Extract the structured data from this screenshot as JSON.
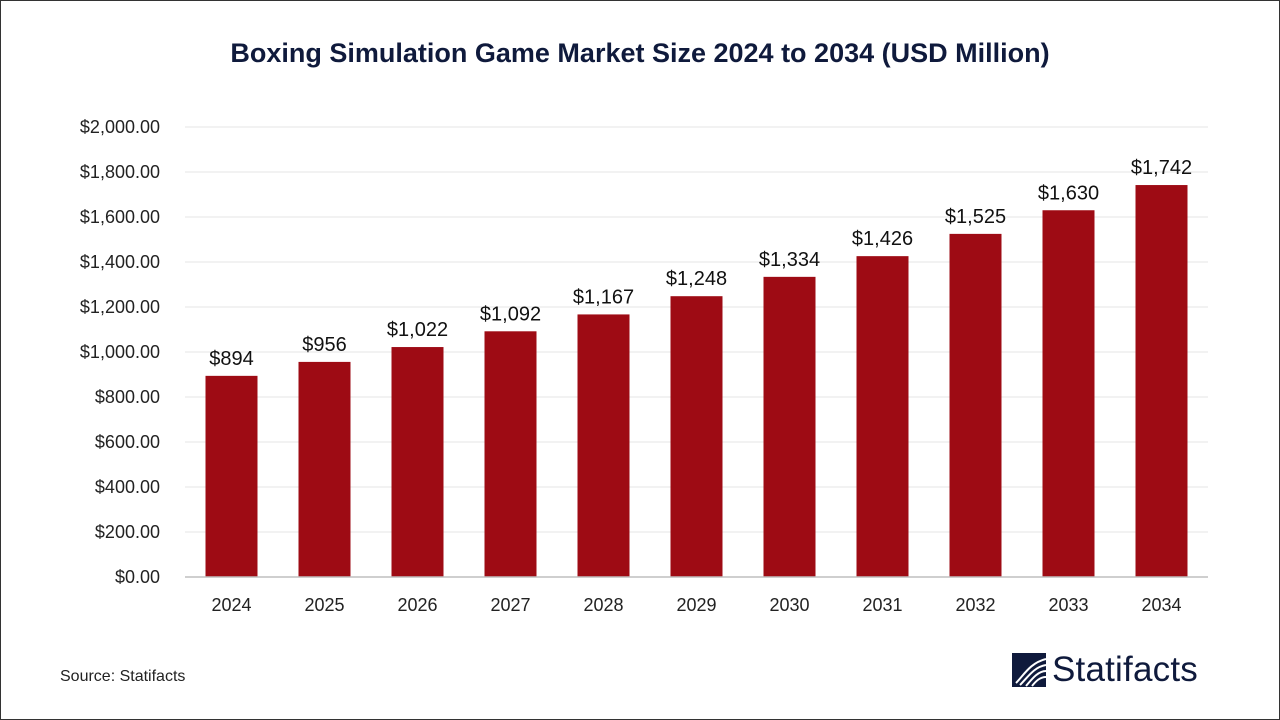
{
  "chart_data": {
    "type": "bar",
    "title": "Boxing Simulation Game Market Size 2024 to 2034 (USD Million)",
    "categories": [
      "2024",
      "2025",
      "2026",
      "2027",
      "2028",
      "2029",
      "2030",
      "2031",
      "2032",
      "2033",
      "2034"
    ],
    "values": [
      894,
      956,
      1022,
      1092,
      1167,
      1248,
      1334,
      1426,
      1525,
      1630,
      1742
    ],
    "data_labels": [
      "$894",
      "$956",
      "$1,022",
      "$1,092",
      "$1,167",
      "$1,248",
      "$1,334",
      "$1,426",
      "$1,525",
      "$1,630",
      "$1,742"
    ],
    "yticks": [
      "$0.00",
      "$200.00",
      "$400.00",
      "$600.00",
      "$800.00",
      "$1,000.00",
      "$1,200.00",
      "$1,400.00",
      "$1,600.00",
      "$1,800.00",
      "$2,000.00"
    ],
    "ylim": [
      0,
      2000
    ],
    "xlabel": "",
    "ylabel": "",
    "grid": true,
    "bar_color": "#9e0b14"
  },
  "source": "Source: Statifacts",
  "logo": {
    "text": "Statifacts",
    "color": "#0f1a3c"
  }
}
